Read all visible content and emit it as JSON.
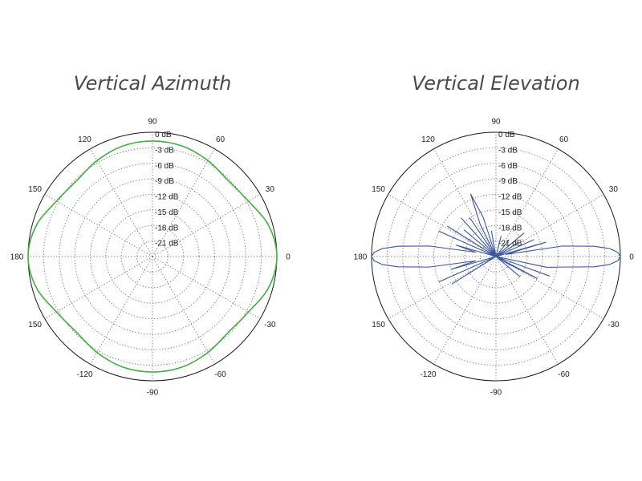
{
  "chart_data": [
    {
      "type": "polar-line",
      "title": "Vertical Azimuth",
      "radial_ticks": [
        "0 dB",
        "-3 dB",
        "-6 dB",
        "-9 dB",
        "-12 dB",
        "-15 dB",
        "-18 dB",
        "-21 dB"
      ],
      "radial_range_db": [
        -24,
        0
      ],
      "angle_ticks": [
        {
          "deg": 90,
          "label": "90"
        },
        {
          "deg": 60,
          "label": "60"
        },
        {
          "deg": 30,
          "label": "30"
        },
        {
          "deg": 0,
          "label": "0"
        },
        {
          "deg": -30,
          "label": "-30"
        },
        {
          "deg": -60,
          "label": "-60"
        },
        {
          "deg": -90,
          "label": "-90"
        },
        {
          "deg": -120,
          "label": "-120"
        },
        {
          "deg": -150,
          "label": "150"
        },
        {
          "deg": 180,
          "label": "180"
        },
        {
          "deg": 150,
          "label": "150"
        },
        {
          "deg": 120,
          "label": "120"
        }
      ],
      "grid": true,
      "color": "#3db23d",
      "series": [
        {
          "angles_deg": [
            0,
            15,
            30,
            45,
            60,
            75,
            90,
            105,
            120,
            135,
            150,
            165,
            180,
            195,
            210,
            225,
            240,
            255,
            270,
            285,
            300,
            315,
            330,
            345
          ],
          "gain_db": [
            0,
            -0.8,
            -2.6,
            -3.3,
            -2.6,
            -1.9,
            -1.7,
            -1.9,
            -2.6,
            -3.3,
            -2.6,
            -0.8,
            0,
            -0.8,
            -2.6,
            -3.3,
            -2.6,
            -1.9,
            -1.7,
            -1.9,
            -2.6,
            -3.3,
            -2.6,
            -0.8
          ]
        }
      ]
    },
    {
      "type": "polar-line",
      "title": "Vertical Elevation",
      "radial_ticks": [
        "0 dB",
        "-3 dB",
        "-6 dB",
        "-9 dB",
        "-12 dB",
        "-15 dB",
        "-18 dB",
        "-21 dB"
      ],
      "radial_range_db": [
        -24,
        0
      ],
      "angle_ticks": [
        {
          "deg": 90,
          "label": "90"
        },
        {
          "deg": 60,
          "label": "60"
        },
        {
          "deg": 30,
          "label": "30"
        },
        {
          "deg": 0,
          "label": "0"
        },
        {
          "deg": -30,
          "label": "-30"
        },
        {
          "deg": -60,
          "label": "-60"
        },
        {
          "deg": -90,
          "label": "-90"
        },
        {
          "deg": -120,
          "label": "-120"
        },
        {
          "deg": -150,
          "label": "150"
        },
        {
          "deg": 180,
          "label": "180"
        },
        {
          "deg": 150,
          "label": "150"
        },
        {
          "deg": 120,
          "label": "120"
        }
      ],
      "grid": true,
      "color": "#3a55a4",
      "series": [
        {
          "angles_deg": [
            0,
            2,
            4,
            6,
            9,
            12,
            16,
            20,
            24,
            28,
            32,
            36,
            40,
            44,
            48,
            52,
            56,
            60,
            64,
            68,
            72,
            76,
            80,
            84,
            88,
            92,
            96,
            100,
            104,
            108,
            112,
            116,
            120,
            124,
            128,
            132,
            136,
            140,
            144,
            148,
            152,
            156,
            160,
            164,
            168,
            171,
            174,
            176,
            178,
            180,
            182,
            184,
            186,
            189,
            192,
            196,
            200,
            204,
            208,
            212,
            216,
            220,
            224,
            228,
            232,
            236,
            240,
            244,
            248,
            252,
            256,
            260,
            264,
            268,
            272,
            276,
            280,
            284,
            288,
            292,
            296,
            300,
            304,
            308,
            312,
            316,
            320,
            324,
            328,
            332,
            336,
            340,
            344,
            348,
            351,
            354,
            356,
            358,
            360
          ],
          "gain_db": [
            0,
            -0.5,
            -2,
            -5,
            -11,
            -22,
            -14,
            -24,
            -16,
            -24,
            -19,
            -24,
            -17,
            -24,
            -24,
            -20,
            -24,
            -24,
            -24,
            -24,
            -24,
            -20,
            -24,
            -24,
            -24,
            -24,
            -24,
            -19,
            -24,
            -16,
            -11,
            -17,
            -24,
            -15,
            -24,
            -14,
            -24,
            -16,
            -24,
            -13,
            -24,
            -12,
            -24,
            -16,
            -20,
            -11,
            -5,
            -2,
            -0.5,
            0,
            -0.5,
            -2,
            -5,
            -11,
            -20,
            -15,
            -24,
            -12,
            -24,
            -14,
            -24,
            -24,
            -24,
            -24,
            -24,
            -24,
            -24,
            -24,
            -24,
            -24,
            -24,
            -24,
            -24,
            -24,
            -24,
            -24,
            -24,
            -24,
            -24,
            -24,
            -24,
            -24,
            -24,
            -24,
            -24,
            -24,
            -18,
            -24,
            -22,
            -15,
            -24,
            -13,
            -24,
            -14,
            -11,
            -5,
            -2,
            -0.5,
            0
          ]
        }
      ]
    }
  ]
}
